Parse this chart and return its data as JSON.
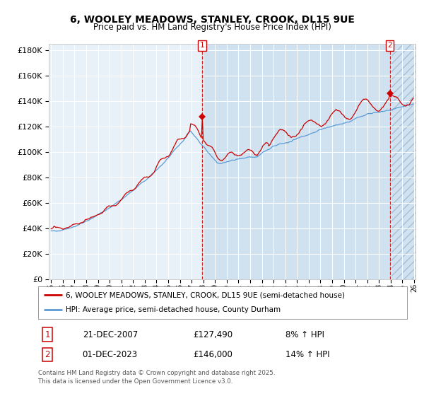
{
  "title_line1": "6, WOOLEY MEADOWS, STANLEY, CROOK, DL15 9UE",
  "title_line2": "Price paid vs. HM Land Registry's House Price Index (HPI)",
  "legend_line1": "6, WOOLEY MEADOWS, STANLEY, CROOK, DL15 9UE (semi-detached house)",
  "legend_line2": "HPI: Average price, semi-detached house, County Durham",
  "annotation1_date": "21-DEC-2007",
  "annotation1_price": "£127,490",
  "annotation1_hpi": "8% ↑ HPI",
  "annotation2_date": "01-DEC-2023",
  "annotation2_price": "£146,000",
  "annotation2_hpi": "14% ↑ HPI",
  "footer": "Contains HM Land Registry data © Crown copyright and database right 2025.\nThis data is licensed under the Open Government Licence v3.0.",
  "red_color": "#cc0000",
  "blue_color": "#5b9bd5",
  "plot_bg": "#e8f0f8",
  "span_bg": "#ccdde8",
  "ylim_max": 185000,
  "y_tick_step": 20000
}
